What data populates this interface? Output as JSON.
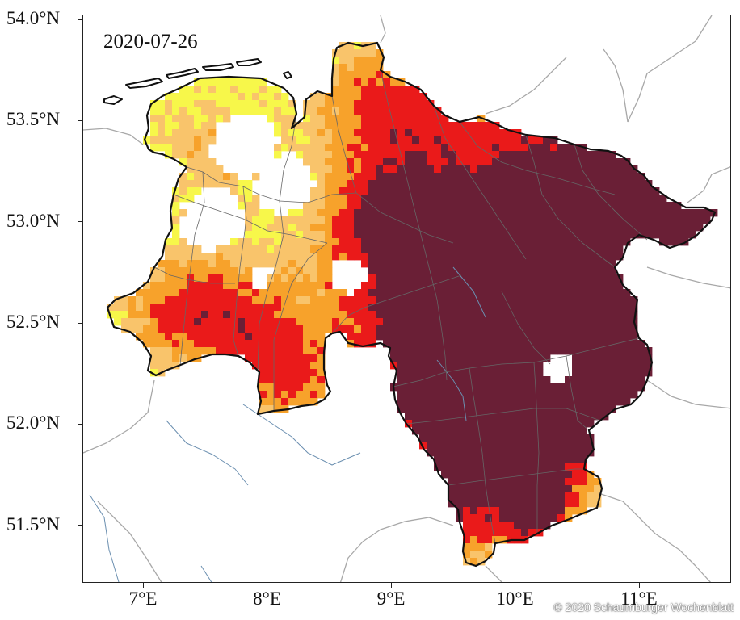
{
  "map": {
    "date": "2020-07-26",
    "lat_labels": [
      {
        "text": "54.0°N",
        "lat": 54.0
      },
      {
        "text": "53.5°N",
        "lat": 53.5
      },
      {
        "text": "53.0°N",
        "lat": 53.0
      },
      {
        "text": "52.5°N",
        "lat": 52.5
      },
      {
        "text": "52.0°N",
        "lat": 52.0
      },
      {
        "text": "51.5°N",
        "lat": 51.5
      }
    ],
    "lon_labels": [
      {
        "text": "7°E",
        "lon": 7
      },
      {
        "text": "8°E",
        "lon": 8
      },
      {
        "text": "9°E",
        "lon": 9
      },
      {
        "text": "10°E",
        "lon": 10
      },
      {
        "text": "11°E",
        "lon": 11
      }
    ],
    "extent": {
      "lon_min": 6.5,
      "lon_max": 11.75,
      "lat_min": 51.2,
      "lat_max": 54.0
    },
    "colors": {
      "level_1": "#f7f74a",
      "level_2": "#f9c46b",
      "level_3": "#f7a22b",
      "level_4": "#ea1a1a",
      "level_5": "#6a1f36",
      "border": "#111111",
      "districts": "#666666",
      "neighbors": "#a8a8a8",
      "rivers": "#6b8fb0"
    },
    "copyright": "© 2020 Schaumburger Wochenblatt"
  }
}
